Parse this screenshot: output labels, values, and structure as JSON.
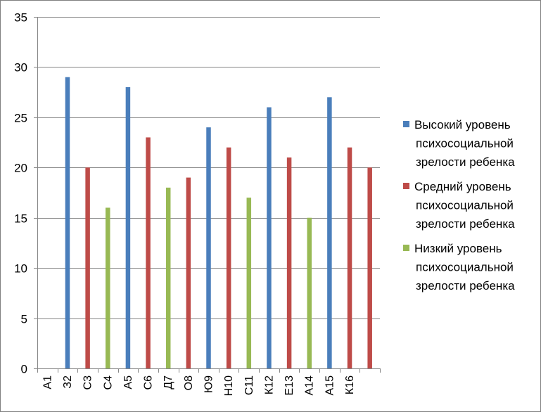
{
  "chart_data": {
    "type": "bar",
    "title": "",
    "xlabel": "",
    "ylabel": "",
    "ylim": [
      0,
      35
    ],
    "yticks": [
      0,
      5,
      10,
      15,
      20,
      25,
      30,
      35
    ],
    "grid": true,
    "legend_position": "right",
    "categories": [
      "А1",
      "З2",
      "С3",
      "С4",
      "А5",
      "С6",
      "Д7",
      "О8",
      "Ю9",
      "Н10",
      "С11",
      "К12",
      "Е13",
      "А14",
      "А15",
      "К16",
      ""
    ],
    "series": [
      {
        "name": "Высокий уровень психосоциальной зрелости ребенка",
        "color": "#4a7ebb",
        "values": [
          null,
          29,
          null,
          null,
          28,
          null,
          null,
          null,
          24,
          null,
          null,
          26,
          null,
          null,
          27,
          null,
          null
        ]
      },
      {
        "name": "Средний уровень психосоциальной зрелости ребенка",
        "color": "#be4b48",
        "values": [
          null,
          null,
          20,
          null,
          null,
          23,
          null,
          19,
          null,
          22,
          null,
          null,
          21,
          null,
          null,
          22,
          20
        ]
      },
      {
        "name": "Низкий уровень психосоциальной зрелости ребенка",
        "color": "#98b954",
        "values": [
          null,
          null,
          null,
          16,
          null,
          null,
          18,
          null,
          null,
          null,
          17,
          null,
          null,
          15,
          null,
          null,
          null
        ]
      }
    ]
  }
}
